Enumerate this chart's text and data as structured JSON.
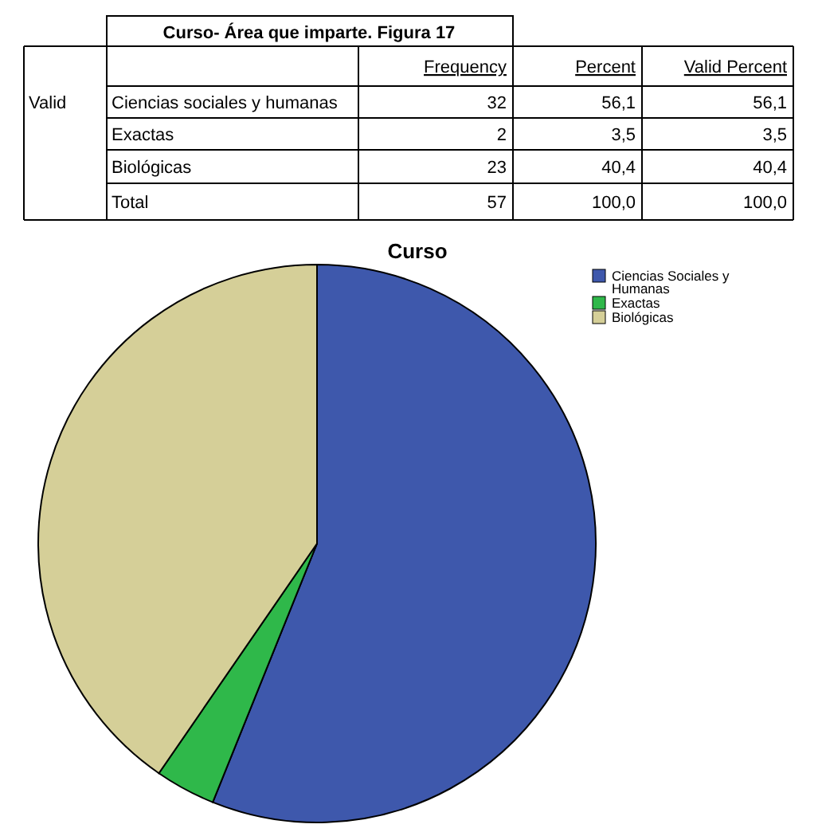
{
  "chart_data": [
    {
      "type": "other",
      "title": "Curso- Área que imparte. Figura 17",
      "annotations": [
        "Frequency",
        "Percent",
        "Valid Percent",
        "Valid",
        "Ciencias sociales y humanas",
        "32",
        "56,1",
        "56,1",
        "Exactas",
        "2",
        "3,5",
        "3,5",
        "Biológicas",
        "23",
        "40,4",
        "40,4",
        "Total",
        "57",
        "100,0",
        "100,0"
      ]
    },
    {
      "type": "pie",
      "title": "Curso",
      "categories": [
        "Ciencias Sociales y Humanas",
        "Exactas",
        "Biológicas"
      ],
      "values": [
        56.1,
        3.5,
        40.4
      ],
      "colors": [
        "#3e58ac",
        "#2fb84a",
        "#d5cf98"
      ],
      "legend": "top right"
    }
  ]
}
